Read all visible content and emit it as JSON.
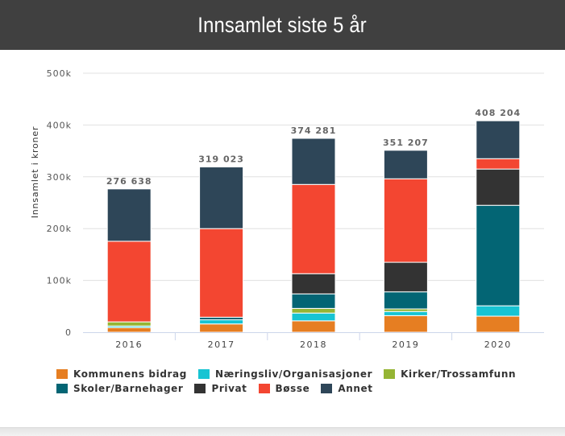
{
  "header": {
    "title": "Innsamlet siste 5 år"
  },
  "chart_data": {
    "type": "bar",
    "stacked": true,
    "title": "Innsamlet siste 5 år",
    "xlabel": "",
    "ylabel": "Innsamlet i kroner",
    "ylim": [
      0,
      500000
    ],
    "yticks": [
      0,
      100000,
      200000,
      300000,
      400000,
      500000
    ],
    "ytick_labels": [
      "0",
      "100k",
      "200k",
      "300k",
      "400k",
      "500k"
    ],
    "grid": true,
    "legend_position": "bottom",
    "categories": [
      "2016",
      "2017",
      "2018",
      "2019",
      "2020"
    ],
    "totals": [
      276638,
      319023,
      374281,
      351207,
      408204
    ],
    "total_labels": [
      "276 638",
      "319 023",
      "374 281",
      "351 207",
      "408 204"
    ],
    "series": [
      {
        "name": "Kommunens bidrag",
        "color": "#e67e22",
        "values": [
          9000,
          16000,
          22000,
          32000,
          31000
        ]
      },
      {
        "name": "Næringsliv/Organisasjoner",
        "color": "#17c4d3",
        "values": [
          3000,
          8000,
          15000,
          8000,
          20000
        ]
      },
      {
        "name": "Kirker/Trossamfunn",
        "color": "#95b534",
        "values": [
          8000,
          0,
          9000,
          5000,
          0
        ]
      },
      {
        "name": "Skoler/Barnehager",
        "color": "#036574",
        "values": [
          0,
          5000,
          28000,
          33000,
          194000
        ]
      },
      {
        "name": "Privat",
        "color": "#333333",
        "values": [
          0,
          0,
          39000,
          57000,
          70000
        ]
      },
      {
        "name": "Bøsse",
        "color": "#f34631",
        "values": [
          155638,
          171023,
          172281,
          161207,
          20000
        ]
      },
      {
        "name": "Annet",
        "color": "#2e4658",
        "values": [
          101000,
          119000,
          89000,
          55000,
          73204
        ]
      }
    ]
  }
}
